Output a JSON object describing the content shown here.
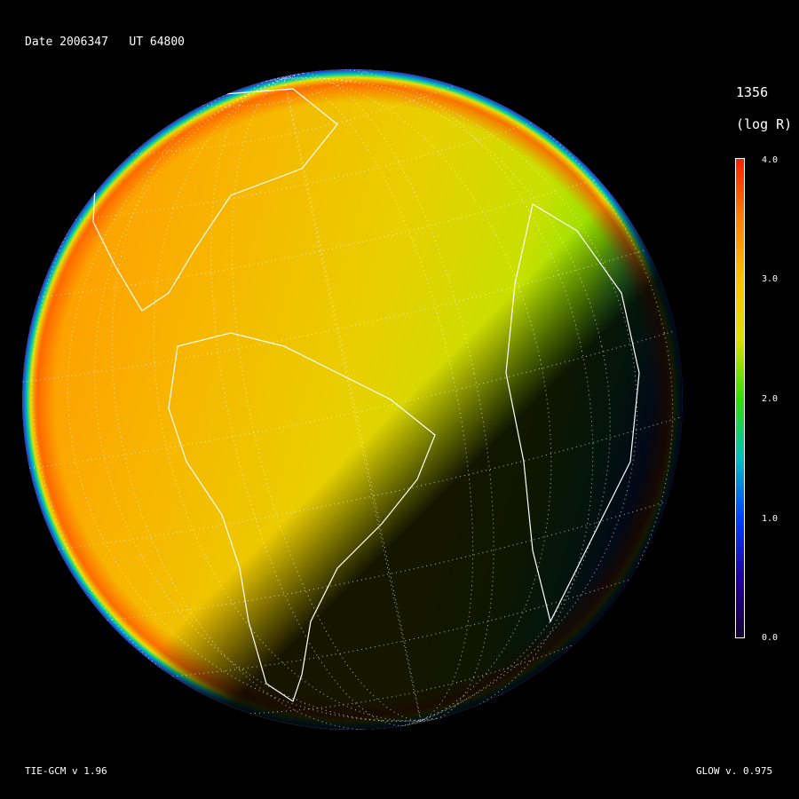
{
  "header": {
    "date_label": "Date 2006347   UT 64800"
  },
  "colorbar": {
    "title": "1356",
    "units": "(log R)",
    "ticks": [
      "4.0",
      "3.0",
      "2.0",
      "1.0",
      "0.0"
    ],
    "range": [
      0.0,
      4.0
    ],
    "colors": [
      "#ff2000",
      "#ff8000",
      "#ffc000",
      "#e0e000",
      "#30e000",
      "#00c0c0",
      "#0040ff",
      "#2000a0",
      "#100030"
    ]
  },
  "footer": {
    "model_label": "TIE-GCM v 1.96",
    "glow_label": "GLOW v. 0.975"
  },
  "globe": {
    "dayside_color": "#f5b800",
    "limb_color": "#ff5000",
    "terminator_color": "#1a0a6a"
  }
}
